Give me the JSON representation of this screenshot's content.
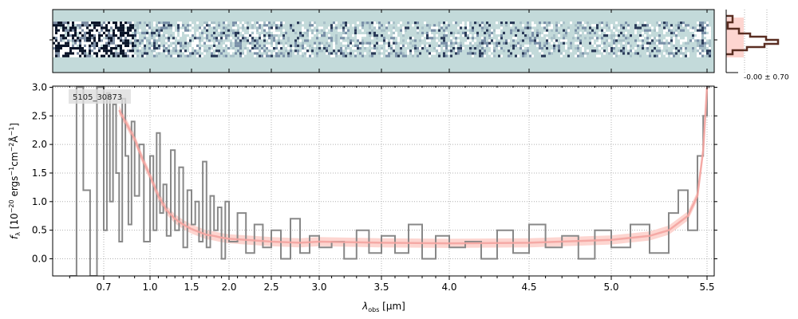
{
  "chart_data": {
    "type": "line",
    "object_label": "5105_30873",
    "xlabel_main": "λ",
    "xlabel_sub": "obs",
    "xlabel_unit": " [μm]",
    "ylabel_parts": [
      "f",
      "λ",
      " [10",
      "−20",
      " ergs",
      "−1",
      "cm",
      "−2",
      "Å",
      "−1",
      "]"
    ],
    "x_ticks": [
      {
        "v": 0.7,
        "label": "0.7"
      },
      {
        "v": 1.0,
        "label": "1.0"
      },
      {
        "v": 1.5,
        "label": "1.5"
      },
      {
        "v": 2.0,
        "label": "2.0"
      },
      {
        "v": 2.5,
        "label": "2.5"
      },
      {
        "v": 3.0,
        "label": "3.0"
      },
      {
        "v": 3.5,
        "label": "3.5"
      },
      {
        "v": 4.0,
        "label": "4.0"
      },
      {
        "v": 4.5,
        "label": "4.5"
      },
      {
        "v": 5.0,
        "label": "5.0"
      },
      {
        "v": 5.5,
        "label": "5.5"
      }
    ],
    "y_ticks": [
      {
        "v": 0.0,
        "label": "0.0"
      },
      {
        "v": 0.5,
        "label": "0.5"
      },
      {
        "v": 1.0,
        "label": "1.0"
      },
      {
        "v": 1.5,
        "label": "1.5"
      },
      {
        "v": 2.0,
        "label": "2.0"
      },
      {
        "v": 2.5,
        "label": "2.5"
      },
      {
        "v": 3.0,
        "label": "3.0"
      }
    ],
    "xlim": [
      0.55,
      5.52
    ],
    "ylim": [
      -0.3,
      3.02
    ],
    "x_scale": "nonlinear (prism dispersion)",
    "grid": true,
    "colors": {
      "data": "#888888",
      "model": "#f4a4a0",
      "model_band": "#fdd5d0",
      "image_bg": "#c3dada",
      "profile": "#5a2e22"
    },
    "series": [
      {
        "role": "observed spectrum",
        "style": "steps",
        "x": [
          0.6,
          0.62,
          0.64,
          0.66,
          0.68,
          0.7,
          0.72,
          0.74,
          0.76,
          0.78,
          0.8,
          0.82,
          0.84,
          0.86,
          0.88,
          0.9,
          0.93,
          0.96,
          1.0,
          1.04,
          1.08,
          1.12,
          1.16,
          1.2,
          1.25,
          1.3,
          1.35,
          1.4,
          1.45,
          1.5,
          1.55,
          1.6,
          1.65,
          1.7,
          1.75,
          1.8,
          1.85,
          1.9,
          1.95,
          2.0,
          2.1,
          2.2,
          2.3,
          2.4,
          2.5,
          2.6,
          2.7,
          2.8,
          2.9,
          3.0,
          3.1,
          3.2,
          3.3,
          3.4,
          3.5,
          3.6,
          3.7,
          3.8,
          3.9,
          4.0,
          4.1,
          4.2,
          4.3,
          4.4,
          4.5,
          4.6,
          4.7,
          4.8,
          4.9,
          5.0,
          5.1,
          5.2,
          5.3,
          5.35,
          5.4,
          5.45,
          5.48,
          5.5
        ],
        "y": [
          -0.3,
          3.0,
          1.2,
          -0.3,
          3.0,
          0.5,
          2.9,
          1.0,
          2.7,
          1.5,
          0.3,
          2.8,
          1.8,
          0.6,
          2.4,
          1.1,
          2.0,
          0.3,
          1.8,
          0.5,
          2.2,
          0.8,
          1.3,
          0.4,
          1.9,
          0.5,
          1.6,
          0.2,
          1.2,
          0.6,
          1.0,
          0.3,
          1.7,
          0.2,
          1.1,
          0.5,
          0.9,
          0.0,
          1.0,
          0.3,
          0.8,
          0.1,
          0.6,
          0.2,
          0.5,
          0.0,
          0.7,
          0.1,
          0.4,
          0.2,
          0.3,
          0.0,
          0.5,
          0.1,
          0.4,
          0.1,
          0.6,
          0.0,
          0.4,
          0.2,
          0.3,
          0.0,
          0.5,
          0.1,
          0.6,
          0.2,
          0.4,
          0.0,
          0.5,
          0.2,
          0.6,
          0.1,
          0.8,
          1.2,
          0.5,
          1.8,
          2.5,
          3.0
        ]
      },
      {
        "role": "model",
        "style": "line",
        "x": [
          0.8,
          0.85,
          0.9,
          0.95,
          1.0,
          1.1,
          1.2,
          1.3,
          1.4,
          1.5,
          1.6,
          1.7,
          1.8,
          1.9,
          2.0,
          2.2,
          2.5,
          2.8,
          3.0,
          3.5,
          4.0,
          4.5,
          5.0,
          5.2,
          5.3,
          5.4,
          5.45,
          5.48,
          5.5
        ],
        "y": [
          2.6,
          2.35,
          2.1,
          1.75,
          1.45,
          1.1,
          0.85,
          0.7,
          0.6,
          0.52,
          0.47,
          0.42,
          0.4,
          0.37,
          0.35,
          0.33,
          0.3,
          0.28,
          0.3,
          0.28,
          0.27,
          0.28,
          0.33,
          0.4,
          0.5,
          0.75,
          1.1,
          1.9,
          3.0
        ]
      }
    ],
    "inset_label": "-0.00 ± 0.70"
  }
}
